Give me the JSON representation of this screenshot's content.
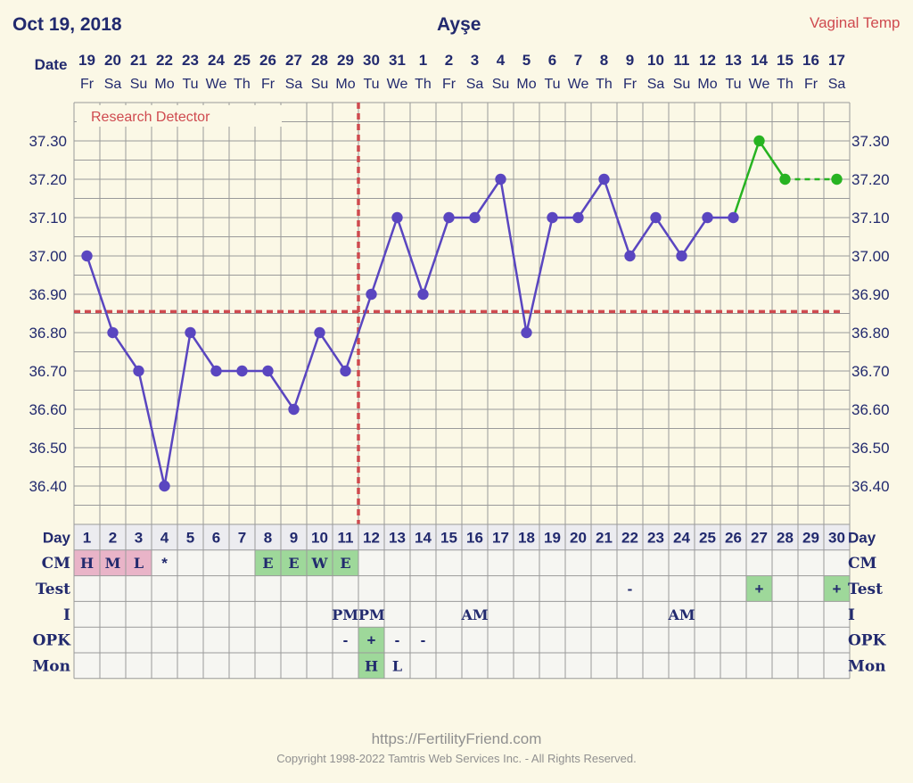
{
  "header": {
    "date": "Oct 19, 2018",
    "name": "Ayşe",
    "mode": "Vaginal Temp"
  },
  "detector_label": "Research Detector",
  "row_labels": {
    "date": "Date",
    "day": "Day",
    "cm": "CM",
    "test": "Test",
    "intercourse": "I",
    "opk": "OPK",
    "mon": "Mon"
  },
  "columns": {
    "dates": [
      "19",
      "20",
      "21",
      "22",
      "23",
      "24",
      "25",
      "26",
      "27",
      "28",
      "29",
      "30",
      "31",
      "1",
      "2",
      "3",
      "4",
      "5",
      "6",
      "7",
      "8",
      "9",
      "10",
      "11",
      "12",
      "13",
      "14",
      "15",
      "16",
      "17"
    ],
    "weekdays": [
      "Fr",
      "Sa",
      "Su",
      "Mo",
      "Tu",
      "We",
      "Th",
      "Fr",
      "Sa",
      "Su",
      "Mo",
      "Tu",
      "We",
      "Th",
      "Fr",
      "Sa",
      "Su",
      "Mo",
      "Tu",
      "We",
      "Th",
      "Fr",
      "Sa",
      "Su",
      "Mo",
      "Tu",
      "We",
      "Th",
      "Fr",
      "Sa"
    ],
    "days": [
      "1",
      "2",
      "3",
      "4",
      "5",
      "6",
      "7",
      "8",
      "9",
      "10",
      "11",
      "12",
      "13",
      "14",
      "15",
      "16",
      "17",
      "18",
      "19",
      "20",
      "21",
      "22",
      "23",
      "24",
      "25",
      "26",
      "27",
      "28",
      "29",
      "30"
    ]
  },
  "rows": {
    "cm": [
      {
        "day": 1,
        "text": "H",
        "color": "#e9b4c8"
      },
      {
        "day": 2,
        "text": "M",
        "color": "#e9b4c8"
      },
      {
        "day": 3,
        "text": "L",
        "color": "#e9b4c8"
      },
      {
        "day": 4,
        "text": "*",
        "color": ""
      },
      {
        "day": 8,
        "text": "E",
        "color": "#9ed89a"
      },
      {
        "day": 9,
        "text": "E",
        "color": "#9ed89a"
      },
      {
        "day": 10,
        "text": "W",
        "color": "#9ed89a"
      },
      {
        "day": 11,
        "text": "E",
        "color": "#9ed89a"
      }
    ],
    "test": [
      {
        "day": 22,
        "text": "-",
        "color": ""
      },
      {
        "day": 27,
        "text": "+",
        "color": "#9ed89a"
      },
      {
        "day": 30,
        "text": "+",
        "color": "#9ed89a"
      }
    ],
    "intercourse": [
      {
        "day": 11,
        "text": "PM",
        "color": ""
      },
      {
        "day": 12,
        "text": "PM",
        "color": ""
      },
      {
        "day": 16,
        "text": "AM",
        "color": ""
      },
      {
        "day": 24,
        "text": "AM",
        "color": ""
      }
    ],
    "opk": [
      {
        "day": 11,
        "text": "-",
        "color": ""
      },
      {
        "day": 12,
        "text": "+",
        "color": "#9ed89a"
      },
      {
        "day": 13,
        "text": "-",
        "color": ""
      },
      {
        "day": 14,
        "text": "-",
        "color": ""
      }
    ],
    "mon": [
      {
        "day": 12,
        "text": "H",
        "color": "#9ed89a"
      },
      {
        "day": 13,
        "text": "L",
        "color": ""
      }
    ]
  },
  "chart_data": {
    "type": "line",
    "x_label": "Day",
    "y_tick_labels": [
      "37.30",
      "37.20",
      "37.10",
      "37.00",
      "36.90",
      "36.80",
      "36.70",
      "36.60",
      "36.50",
      "36.40"
    ],
    "ylim": [
      36.3,
      37.4
    ],
    "grid": true,
    "coverline": 36.855,
    "ovulation_day": 11,
    "series": [
      {
        "color": "#5a46c0",
        "days": [
          1,
          2,
          3,
          4,
          5,
          6,
          7,
          8,
          9,
          10,
          11,
          12,
          13,
          14,
          15,
          16,
          17,
          18,
          19,
          20,
          21,
          22,
          23,
          24,
          25,
          26
        ],
        "values": [
          37.0,
          36.8,
          36.7,
          36.4,
          36.8,
          36.7,
          36.7,
          36.7,
          36.6,
          36.8,
          36.7,
          36.9,
          37.1,
          36.9,
          37.1,
          37.1,
          37.2,
          36.8,
          37.1,
          37.1,
          37.2,
          37.0,
          37.1,
          37.0,
          37.1,
          37.1
        ]
      },
      {
        "color": "#27b321",
        "days": [
          27,
          28
        ],
        "values": [
          37.3,
          37.2
        ]
      },
      {
        "color": "#27b321",
        "dashed": true,
        "days": [
          30
        ],
        "values": [
          37.2
        ]
      }
    ]
  },
  "footer": {
    "url": "https://FertilityFriend.com",
    "copyright": "Copyright 1998-2022 Tamtris Web Services Inc. - All Rights Reserved."
  },
  "colors": {
    "text": "#222a6e",
    "grid": "#9a9a9a",
    "coverline": "#cf4a4f",
    "background": "#fbf8e6",
    "grid_background": "#f6f6f2"
  }
}
